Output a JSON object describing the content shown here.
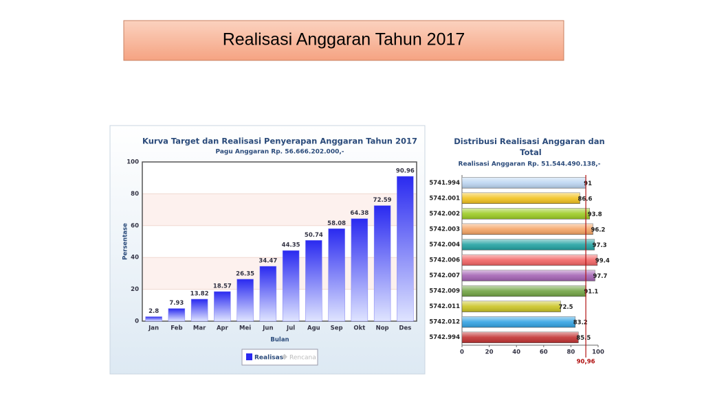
{
  "slide_title": "Realisasi Anggaran Tahun 2017",
  "chart_data": [
    {
      "type": "bar",
      "title": "Kurva Target dan Realisasi Penyerapan Anggaran Tahun 2017",
      "subtitle": "Pagu Anggaran Rp. 56.666.202.000,-",
      "xlabel": "Bulan",
      "ylabel": "Persentase",
      "categories": [
        "Jan",
        "Feb",
        "Mar",
        "Apr",
        "Mei",
        "Jun",
        "Jul",
        "Agu",
        "Sep",
        "Okt",
        "Nop",
        "Des"
      ],
      "series": [
        {
          "name": "Realisasi",
          "color": "#2a2af0",
          "values": [
            2.8,
            7.93,
            13.82,
            18.57,
            26.35,
            34.47,
            44.35,
            50.74,
            58.08,
            64.38,
            72.59,
            90.96
          ]
        }
      ],
      "inactive_legend": [
        "Rencana"
      ],
      "ylim": [
        0,
        100
      ],
      "yticks": [
        0,
        20,
        40,
        60,
        80,
        100
      ],
      "grid": true
    },
    {
      "type": "hbar",
      "title": "Distribusi Realisasi Anggaran dan Total",
      "subtitle": "Realisasi Anggaran Rp. 51.544.490.138,-",
      "categories": [
        "5741.994",
        "5742.001",
        "5742.002",
        "5742.003",
        "5742.004",
        "5742.006",
        "5742.007",
        "5742.009",
        "5742.011",
        "5742.012",
        "5742.994"
      ],
      "values": [
        91,
        86.6,
        93.8,
        96.2,
        97.3,
        99.4,
        97.7,
        91.1,
        72.5,
        83.2,
        85.5
      ],
      "colors": [
        "#bcd6f2",
        "#f2c21e",
        "#9ccc24",
        "#f5a464",
        "#22a3a3",
        "#f26464",
        "#a463b4",
        "#72a444",
        "#cac424",
        "#33a3e3",
        "#c23232"
      ],
      "xlim": [
        0,
        100
      ],
      "xticks": [
        0,
        20,
        40,
        60,
        80,
        100
      ],
      "reference_line": {
        "value": 90.96,
        "label": "90,96",
        "color": "#b01010"
      }
    }
  ]
}
